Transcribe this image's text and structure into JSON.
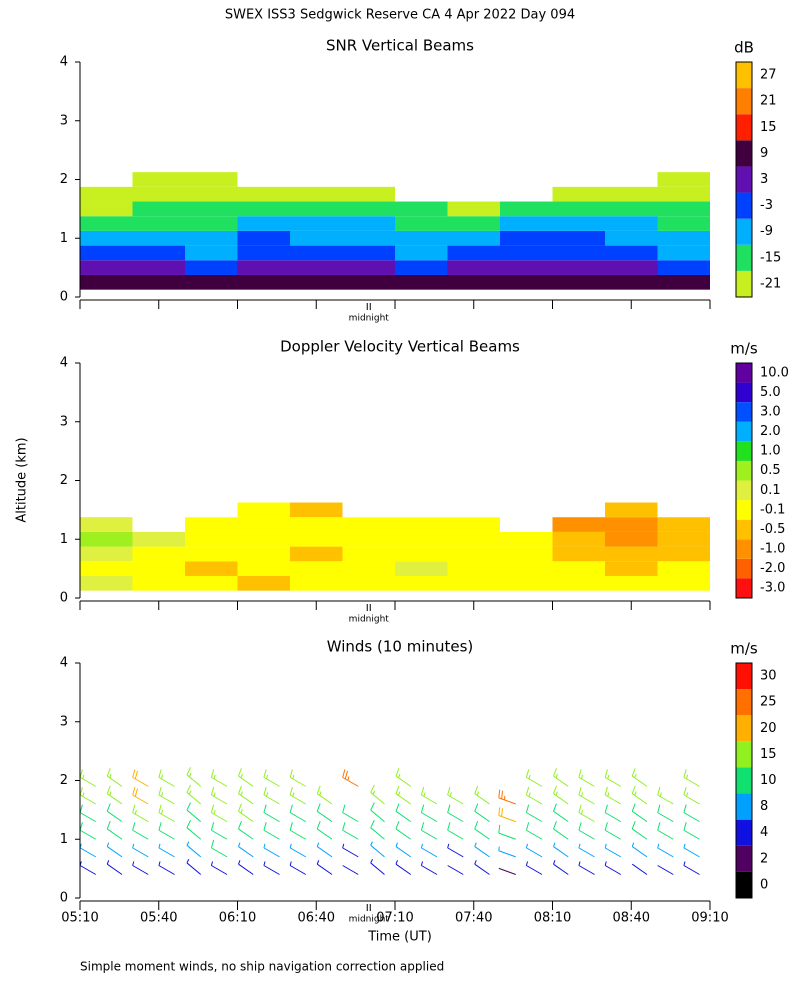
{
  "title": "SWEX ISS3 Sedgwick Reserve CA   4 Apr 2022 Day 094",
  "y_label": "Altitude (km)",
  "x_label": "Time (UT)",
  "footnote": "Simple moment winds, no ship navigation correction applied",
  "midnight": {
    "value": 420,
    "label": "midnight"
  },
  "chart_data": [
    {
      "type": "heatmap",
      "title": "SNR Vertical Beams",
      "unit": "dB",
      "x": [
        320,
        340,
        360,
        380,
        400,
        420,
        440,
        460,
        480,
        500,
        520,
        540
      ],
      "y": [
        0.25,
        0.5,
        0.75,
        1.0,
        1.25,
        1.5,
        1.75,
        2.0
      ],
      "values": [
        [
          9,
          9,
          9,
          9,
          9,
          9,
          9,
          9,
          9,
          9,
          9,
          9
        ],
        [
          3,
          3,
          -3,
          3,
          3,
          3,
          -3,
          3,
          3,
          3,
          3,
          -3
        ],
        [
          -3,
          -3,
          -9,
          -3,
          -3,
          -3,
          -9,
          -3,
          -3,
          -3,
          -3,
          -9
        ],
        [
          -9,
          -9,
          -9,
          -3,
          -9,
          -9,
          -9,
          -9,
          -3,
          -3,
          -9,
          -9
        ],
        [
          -15,
          -15,
          -15,
          -9,
          -9,
          -9,
          -15,
          -15,
          -9,
          -9,
          -9,
          -15
        ],
        [
          -21,
          -15,
          -15,
          -15,
          -15,
          -15,
          -15,
          -21,
          -15,
          -15,
          -15,
          -15
        ],
        [
          -21,
          -21,
          -21,
          -21,
          -21,
          -21,
          null,
          null,
          null,
          -21,
          -21,
          -21
        ],
        [
          null,
          -21,
          -21,
          null,
          null,
          null,
          null,
          null,
          null,
          null,
          null,
          -21
        ]
      ],
      "colorbar": {
        "ticks": [
          -21,
          -15,
          -9,
          -3,
          3,
          9,
          15,
          21,
          27
        ],
        "colors": [
          "#c8f020",
          "#20e060",
          "#00b0ff",
          "#0040ff",
          "#6010b0",
          "#400040",
          "#ff2000",
          "#ff8000",
          "#ffc000"
        ]
      },
      "xlim": [
        310,
        550
      ],
      "xticks": [
        310,
        340,
        370,
        400,
        430,
        460,
        490,
        520,
        550
      ],
      "ylim": [
        0,
        4
      ],
      "yticks": [
        0,
        1,
        2,
        3,
        4
      ]
    },
    {
      "type": "heatmap",
      "title": "Doppler Velocity Vertical Beams",
      "unit": "m/s",
      "x": [
        320,
        340,
        360,
        380,
        400,
        420,
        440,
        460,
        480,
        500,
        520,
        540
      ],
      "y": [
        0.25,
        0.5,
        0.75,
        1.0,
        1.25,
        1.5
      ],
      "values": [
        [
          0.1,
          -0.1,
          -0.1,
          -0.5,
          -0.1,
          -0.1,
          -0.1,
          -0.1,
          -0.1,
          -0.1,
          -0.1,
          -0.1
        ],
        [
          -0.1,
          -0.1,
          -0.5,
          -0.1,
          -0.1,
          -0.1,
          0.1,
          -0.1,
          -0.1,
          -0.1,
          -0.5,
          -0.1
        ],
        [
          0.1,
          -0.1,
          -0.1,
          -0.1,
          -0.5,
          -0.1,
          -0.1,
          -0.1,
          -0.1,
          -0.5,
          -0.5,
          -0.5
        ],
        [
          0.5,
          0.1,
          -0.1,
          -0.1,
          -0.1,
          -0.1,
          -0.1,
          -0.1,
          -0.1,
          -0.5,
          -1,
          -0.5
        ],
        [
          0.1,
          null,
          -0.1,
          -0.1,
          -0.1,
          -0.1,
          -0.1,
          -0.1,
          null,
          -1,
          -1,
          -0.5
        ],
        [
          null,
          null,
          null,
          -0.1,
          -0.5,
          null,
          null,
          null,
          null,
          null,
          -0.5,
          null
        ]
      ],
      "colorbar": {
        "ticks": [
          {
            "value": -3,
            "label": "-3.0"
          },
          {
            "value": -2,
            "label": "-2.0"
          },
          {
            "value": -1,
            "label": "-1.0"
          },
          -0.5,
          -0.1,
          0.1,
          0.5,
          {
            "value": 1,
            "label": "1.0"
          },
          {
            "value": 2,
            "label": "2.0"
          },
          {
            "value": 3,
            "label": "3.0"
          },
          {
            "value": 5,
            "label": "5.0"
          },
          {
            "value": 10,
            "label": "10.0"
          }
        ],
        "colors": [
          "#ff1010",
          "#ff6000",
          "#ff9000",
          "#ffc000",
          "#ffff00",
          "#e0f040",
          "#a0f020",
          "#20e020",
          "#00b0ff",
          "#0050ff",
          "#3000d0",
          "#6000a0"
        ]
      },
      "xlim": [
        310,
        550
      ],
      "xticks": [
        310,
        340,
        370,
        400,
        430,
        460,
        490,
        520,
        550
      ],
      "ylim": [
        0,
        4
      ],
      "yticks": [
        0,
        1,
        2,
        3,
        4
      ]
    },
    {
      "type": "barbs",
      "title": "Winds (10 minutes)",
      "unit": "m/s",
      "x": [
        316,
        326,
        336,
        346,
        356,
        366,
        376,
        386,
        396,
        406,
        416,
        426,
        436,
        446,
        456,
        466,
        476,
        486,
        496,
        506,
        516,
        526,
        536,
        546
      ],
      "y": [
        0.4,
        0.7,
        1.0,
        1.3,
        1.6,
        1.9
      ],
      "values": [
        [
          6,
          5,
          6,
          6,
          5,
          6,
          7,
          6,
          5,
          6,
          4,
          5,
          6,
          5,
          4,
          5,
          3,
          5,
          6,
          6,
          5,
          4,
          4,
          5
        ],
        [
          9,
          8,
          9,
          9,
          8,
          10,
          9,
          9,
          8,
          9,
          7,
          8,
          8,
          8,
          7,
          8,
          8,
          8,
          9,
          9,
          8,
          9,
          8,
          9
        ],
        [
          12,
          12,
          13,
          13,
          12,
          14,
          13,
          12,
          12,
          12,
          11,
          12,
          12,
          12,
          11,
          12,
          13,
          12,
          13,
          13,
          12,
          12,
          11,
          12
        ],
        [
          14,
          14,
          15,
          15,
          14,
          16,
          15,
          14,
          14,
          13,
          13,
          14,
          14,
          14,
          13,
          14,
          22,
          14,
          14,
          15,
          14,
          14,
          13,
          14
        ],
        [
          16,
          15,
          21,
          16,
          16,
          17,
          16,
          16,
          15,
          15,
          null,
          15,
          15,
          15,
          15,
          15,
          25,
          15,
          16,
          16,
          16,
          16,
          15,
          15
        ],
        [
          17,
          16,
          22,
          18,
          17,
          18,
          17,
          16,
          16,
          null,
          26,
          null,
          16,
          null,
          null,
          null,
          null,
          16,
          17,
          17,
          18,
          16,
          null,
          17
        ]
      ],
      "directions": [
        300,
        305,
        300,
        300,
        310,
        300,
        305,
        300,
        300,
        305,
        300,
        310,
        305,
        300,
        300,
        305,
        290,
        300,
        305,
        300,
        300,
        305,
        300,
        300
      ],
      "colorbar": {
        "ticks": [
          0,
          2,
          4,
          8,
          10,
          15,
          20,
          25,
          30
        ],
        "colors": [
          "#000000",
          "#500060",
          "#1010e0",
          "#00a0ff",
          "#10e070",
          "#90f020",
          "#ffb000",
          "#ff7000",
          "#ff1000"
        ]
      },
      "xlim": [
        310,
        550
      ],
      "xticks": [
        {
          "value": 310,
          "label": "05:10"
        },
        {
          "value": 340,
          "label": "05:40"
        },
        {
          "value": 370,
          "label": "06:10"
        },
        {
          "value": 400,
          "label": "06:40"
        },
        {
          "value": 430,
          "label": "07:10"
        },
        {
          "value": 460,
          "label": "07:40"
        },
        {
          "value": 490,
          "label": "08:10"
        },
        {
          "value": 520,
          "label": "08:40"
        },
        {
          "value": 550,
          "label": "09:10"
        }
      ],
      "ylim": [
        0,
        4
      ],
      "yticks": [
        0,
        1,
        2,
        3,
        4
      ]
    }
  ]
}
